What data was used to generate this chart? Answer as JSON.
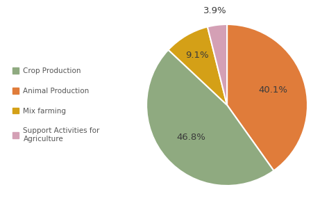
{
  "legend_labels": [
    "Crop Production",
    "Animal Production",
    "Mix farming",
    "Support Activities for\nAgriculture"
  ],
  "legend_colors": [
    "#8faa80",
    "#e07c3a",
    "#d4a017",
    "#d4a0b5"
  ],
  "values": [
    40.1,
    46.8,
    9.1,
    3.9
  ],
  "slice_labels": [
    "40.1%",
    "46.8%",
    "9.1%",
    "3.9%"
  ],
  "colors": [
    "#e07c3a",
    "#8faa80",
    "#d4a017",
    "#d4a0b5"
  ],
  "background_color": "#ffffff",
  "startangle": 90
}
